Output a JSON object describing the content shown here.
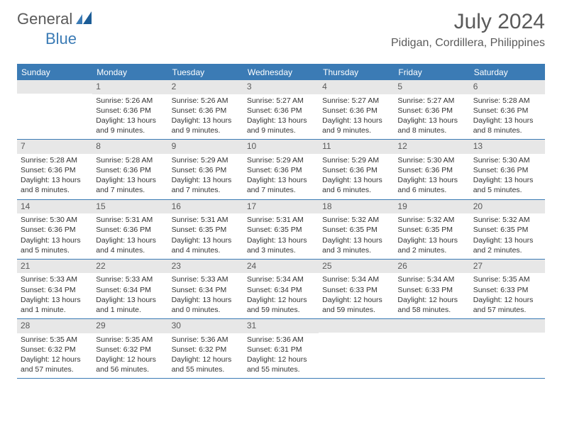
{
  "logo": {
    "text1": "General",
    "text2": "Blue"
  },
  "title": "July 2024",
  "location": "Pidigan, Cordillera, Philippines",
  "day_names": [
    "Sunday",
    "Monday",
    "Tuesday",
    "Wednesday",
    "Thursday",
    "Friday",
    "Saturday"
  ],
  "colors": {
    "accent": "#3b7bb5",
    "header_text": "#5a5a5a",
    "daynum_bg": "#e7e7e7",
    "body_text": "#333333"
  },
  "weeks": [
    [
      {
        "n": "",
        "lines": []
      },
      {
        "n": "1",
        "lines": [
          "Sunrise: 5:26 AM",
          "Sunset: 6:36 PM",
          "Daylight: 13 hours",
          "and 9 minutes."
        ]
      },
      {
        "n": "2",
        "lines": [
          "Sunrise: 5:26 AM",
          "Sunset: 6:36 PM",
          "Daylight: 13 hours",
          "and 9 minutes."
        ]
      },
      {
        "n": "3",
        "lines": [
          "Sunrise: 5:27 AM",
          "Sunset: 6:36 PM",
          "Daylight: 13 hours",
          "and 9 minutes."
        ]
      },
      {
        "n": "4",
        "lines": [
          "Sunrise: 5:27 AM",
          "Sunset: 6:36 PM",
          "Daylight: 13 hours",
          "and 9 minutes."
        ]
      },
      {
        "n": "5",
        "lines": [
          "Sunrise: 5:27 AM",
          "Sunset: 6:36 PM",
          "Daylight: 13 hours",
          "and 8 minutes."
        ]
      },
      {
        "n": "6",
        "lines": [
          "Sunrise: 5:28 AM",
          "Sunset: 6:36 PM",
          "Daylight: 13 hours",
          "and 8 minutes."
        ]
      }
    ],
    [
      {
        "n": "7",
        "lines": [
          "Sunrise: 5:28 AM",
          "Sunset: 6:36 PM",
          "Daylight: 13 hours",
          "and 8 minutes."
        ]
      },
      {
        "n": "8",
        "lines": [
          "Sunrise: 5:28 AM",
          "Sunset: 6:36 PM",
          "Daylight: 13 hours",
          "and 7 minutes."
        ]
      },
      {
        "n": "9",
        "lines": [
          "Sunrise: 5:29 AM",
          "Sunset: 6:36 PM",
          "Daylight: 13 hours",
          "and 7 minutes."
        ]
      },
      {
        "n": "10",
        "lines": [
          "Sunrise: 5:29 AM",
          "Sunset: 6:36 PM",
          "Daylight: 13 hours",
          "and 7 minutes."
        ]
      },
      {
        "n": "11",
        "lines": [
          "Sunrise: 5:29 AM",
          "Sunset: 6:36 PM",
          "Daylight: 13 hours",
          "and 6 minutes."
        ]
      },
      {
        "n": "12",
        "lines": [
          "Sunrise: 5:30 AM",
          "Sunset: 6:36 PM",
          "Daylight: 13 hours",
          "and 6 minutes."
        ]
      },
      {
        "n": "13",
        "lines": [
          "Sunrise: 5:30 AM",
          "Sunset: 6:36 PM",
          "Daylight: 13 hours",
          "and 5 minutes."
        ]
      }
    ],
    [
      {
        "n": "14",
        "lines": [
          "Sunrise: 5:30 AM",
          "Sunset: 6:36 PM",
          "Daylight: 13 hours",
          "and 5 minutes."
        ]
      },
      {
        "n": "15",
        "lines": [
          "Sunrise: 5:31 AM",
          "Sunset: 6:36 PM",
          "Daylight: 13 hours",
          "and 4 minutes."
        ]
      },
      {
        "n": "16",
        "lines": [
          "Sunrise: 5:31 AM",
          "Sunset: 6:35 PM",
          "Daylight: 13 hours",
          "and 4 minutes."
        ]
      },
      {
        "n": "17",
        "lines": [
          "Sunrise: 5:31 AM",
          "Sunset: 6:35 PM",
          "Daylight: 13 hours",
          "and 3 minutes."
        ]
      },
      {
        "n": "18",
        "lines": [
          "Sunrise: 5:32 AM",
          "Sunset: 6:35 PM",
          "Daylight: 13 hours",
          "and 3 minutes."
        ]
      },
      {
        "n": "19",
        "lines": [
          "Sunrise: 5:32 AM",
          "Sunset: 6:35 PM",
          "Daylight: 13 hours",
          "and 2 minutes."
        ]
      },
      {
        "n": "20",
        "lines": [
          "Sunrise: 5:32 AM",
          "Sunset: 6:35 PM",
          "Daylight: 13 hours",
          "and 2 minutes."
        ]
      }
    ],
    [
      {
        "n": "21",
        "lines": [
          "Sunrise: 5:33 AM",
          "Sunset: 6:34 PM",
          "Daylight: 13 hours",
          "and 1 minute."
        ]
      },
      {
        "n": "22",
        "lines": [
          "Sunrise: 5:33 AM",
          "Sunset: 6:34 PM",
          "Daylight: 13 hours",
          "and 1 minute."
        ]
      },
      {
        "n": "23",
        "lines": [
          "Sunrise: 5:33 AM",
          "Sunset: 6:34 PM",
          "Daylight: 13 hours",
          "and 0 minutes."
        ]
      },
      {
        "n": "24",
        "lines": [
          "Sunrise: 5:34 AM",
          "Sunset: 6:34 PM",
          "Daylight: 12 hours",
          "and 59 minutes."
        ]
      },
      {
        "n": "25",
        "lines": [
          "Sunrise: 5:34 AM",
          "Sunset: 6:33 PM",
          "Daylight: 12 hours",
          "and 59 minutes."
        ]
      },
      {
        "n": "26",
        "lines": [
          "Sunrise: 5:34 AM",
          "Sunset: 6:33 PM",
          "Daylight: 12 hours",
          "and 58 minutes."
        ]
      },
      {
        "n": "27",
        "lines": [
          "Sunrise: 5:35 AM",
          "Sunset: 6:33 PM",
          "Daylight: 12 hours",
          "and 57 minutes."
        ]
      }
    ],
    [
      {
        "n": "28",
        "lines": [
          "Sunrise: 5:35 AM",
          "Sunset: 6:32 PM",
          "Daylight: 12 hours",
          "and 57 minutes."
        ]
      },
      {
        "n": "29",
        "lines": [
          "Sunrise: 5:35 AM",
          "Sunset: 6:32 PM",
          "Daylight: 12 hours",
          "and 56 minutes."
        ]
      },
      {
        "n": "30",
        "lines": [
          "Sunrise: 5:36 AM",
          "Sunset: 6:32 PM",
          "Daylight: 12 hours",
          "and 55 minutes."
        ]
      },
      {
        "n": "31",
        "lines": [
          "Sunrise: 5:36 AM",
          "Sunset: 6:31 PM",
          "Daylight: 12 hours",
          "and 55 minutes."
        ]
      },
      {
        "n": "",
        "lines": []
      },
      {
        "n": "",
        "lines": []
      },
      {
        "n": "",
        "lines": []
      }
    ]
  ]
}
